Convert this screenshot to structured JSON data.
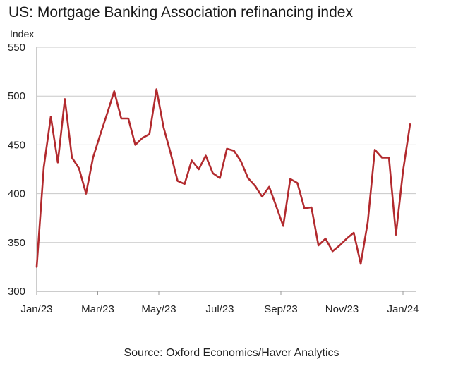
{
  "chart_data": {
    "type": "line",
    "title": "US: Mortgage Banking Association refinancing index",
    "ylabel": "Index",
    "xlabel": "",
    "ylim": [
      300,
      550
    ],
    "yticks": [
      300,
      350,
      400,
      450,
      500,
      550
    ],
    "xticks": [
      "Jan/23",
      "Mar/23",
      "May/23",
      "Jul/23",
      "Sep/23",
      "Nov/23",
      "Jan/24"
    ],
    "grid": "horizontal",
    "series": [
      {
        "name": "MBA refinancing index",
        "color": "#b22a2e",
        "values": [
          325,
          427,
          479,
          432,
          497,
          437,
          426,
          400,
          437,
          460,
          482,
          505,
          477,
          477,
          450,
          457,
          461,
          507,
          468,
          442,
          413,
          410,
          434,
          425,
          439,
          421,
          416,
          446,
          444,
          433,
          416,
          408,
          397,
          407,
          387,
          367,
          415,
          411,
          385,
          386,
          347,
          354,
          341,
          347,
          354,
          360,
          328,
          371,
          445,
          437,
          437,
          358,
          423,
          471
        ]
      }
    ],
    "source": "Source: Oxford Economics/Haver Analytics"
  }
}
